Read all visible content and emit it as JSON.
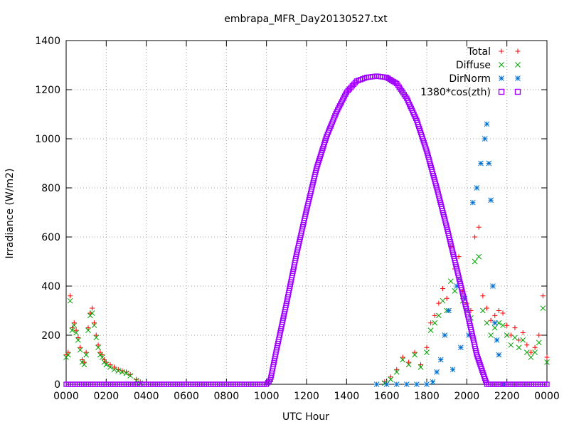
{
  "chart_data": {
    "type": "scatter",
    "title": "embrapa_MFR_Day20130527.txt",
    "xlabel": "UTC Hour",
    "ylabel": "Irradiance (W/m2)",
    "xlim": [
      0,
      24
    ],
    "ylim": [
      0,
      1400
    ],
    "x_ticks": [
      {
        "value": 0,
        "label": "0000"
      },
      {
        "value": 2,
        "label": "0200"
      },
      {
        "value": 4,
        "label": "0400"
      },
      {
        "value": 6,
        "label": "0600"
      },
      {
        "value": 8,
        "label": "0800"
      },
      {
        "value": 10,
        "label": "1000"
      },
      {
        "value": 12,
        "label": "1200"
      },
      {
        "value": 14,
        "label": "1400"
      },
      {
        "value": 16,
        "label": "1600"
      },
      {
        "value": 18,
        "label": "1800"
      },
      {
        "value": 20,
        "label": "2000"
      },
      {
        "value": 22,
        "label": "2200"
      },
      {
        "value": 24,
        "label": "0000"
      }
    ],
    "y_ticks": [
      0,
      200,
      400,
      600,
      800,
      1000,
      1200,
      1400
    ],
    "grid": true,
    "legend_position": "top-right",
    "series": [
      {
        "name": "Total",
        "marker": "+",
        "color": "#ff0000",
        "x": [
          0.0,
          0.1,
          0.2,
          0.3,
          0.4,
          0.5,
          0.6,
          0.7,
          0.8,
          0.9,
          1.0,
          1.1,
          1.2,
          1.3,
          1.4,
          1.5,
          1.6,
          1.7,
          1.8,
          1.9,
          2.0,
          2.2,
          2.4,
          2.6,
          2.8,
          3.0,
          3.2,
          3.5,
          3.7,
          15.9,
          16.2,
          16.5,
          16.8,
          17.1,
          17.4,
          17.7,
          18.0,
          18.2,
          18.4,
          18.6,
          18.8,
          19.0,
          19.2,
          19.4,
          19.6,
          19.8,
          20.0,
          20.2,
          20.4,
          20.6,
          20.8,
          21.0,
          21.2,
          21.4,
          21.6,
          21.8,
          22.0,
          22.2,
          22.4,
          22.6,
          22.8,
          23.0,
          23.2,
          23.4,
          23.6,
          23.8,
          24.0
        ],
        "y": [
          120,
          130,
          360,
          230,
          250,
          220,
          190,
          150,
          100,
          90,
          130,
          230,
          290,
          310,
          250,
          200,
          160,
          130,
          120,
          100,
          90,
          80,
          70,
          60,
          55,
          50,
          40,
          20,
          10,
          10,
          30,
          60,
          110,
          90,
          130,
          80,
          150,
          250,
          280,
          330,
          390,
          350,
          560,
          470,
          520,
          380,
          330,
          300,
          600,
          640,
          360,
          310,
          260,
          280,
          300,
          290,
          240,
          200,
          230,
          180,
          210,
          160,
          130,
          150,
          200,
          360,
          110
        ]
      },
      {
        "name": "Diffuse",
        "marker": "x",
        "color": "#00a000",
        "x": [
          0.0,
          0.1,
          0.2,
          0.3,
          0.4,
          0.5,
          0.6,
          0.7,
          0.8,
          0.9,
          1.0,
          1.1,
          1.2,
          1.3,
          1.4,
          1.5,
          1.6,
          1.7,
          1.8,
          1.9,
          2.0,
          2.2,
          2.4,
          2.6,
          2.8,
          3.0,
          3.2,
          3.5,
          3.7,
          15.9,
          16.2,
          16.5,
          16.8,
          17.1,
          17.4,
          17.7,
          18.0,
          18.2,
          18.4,
          18.6,
          18.8,
          19.0,
          19.2,
          19.4,
          19.6,
          19.8,
          20.0,
          20.2,
          20.4,
          20.6,
          20.8,
          21.0,
          21.2,
          21.4,
          21.6,
          21.8,
          22.0,
          22.2,
          22.4,
          22.6,
          22.8,
          23.0,
          23.2,
          23.4,
          23.6,
          23.8,
          24.0
        ],
        "y": [
          110,
          120,
          340,
          220,
          240,
          210,
          180,
          140,
          90,
          80,
          120,
          220,
          280,
          290,
          240,
          190,
          150,
          120,
          110,
          90,
          80,
          70,
          60,
          55,
          50,
          45,
          35,
          15,
          5,
          5,
          20,
          50,
          100,
          80,
          120,
          70,
          130,
          220,
          250,
          280,
          340,
          300,
          420,
          380,
          430,
          340,
          300,
          270,
          500,
          520,
          300,
          250,
          200,
          230,
          250,
          240,
          200,
          160,
          190,
          150,
          180,
          130,
          110,
          130,
          170,
          310,
          90
        ]
      },
      {
        "name": "DirNorm",
        "marker": "*",
        "color": "#0070d0",
        "x": [
          15.5,
          16.0,
          16.5,
          17.0,
          17.5,
          18.0,
          18.3,
          18.5,
          18.7,
          18.9,
          19.1,
          19.3,
          19.5,
          19.7,
          19.9,
          20.1,
          20.3,
          20.5,
          20.7,
          20.9,
          21.0,
          21.1,
          21.2,
          21.3,
          21.4,
          21.5,
          21.6,
          21.8
        ],
        "y": [
          0,
          0,
          0,
          0,
          0,
          0,
          10,
          50,
          100,
          200,
          300,
          60,
          400,
          150,
          350,
          200,
          740,
          800,
          900,
          1000,
          1060,
          900,
          750,
          400,
          250,
          180,
          120,
          0
        ]
      },
      {
        "name": "1380*cos(zth)",
        "marker": "square",
        "color": "#a000ff",
        "x": [
          0,
          1,
          2,
          3,
          4,
          5,
          6,
          7,
          8,
          9,
          10.0,
          10.2,
          10.5,
          11.0,
          11.5,
          12.0,
          12.5,
          13.0,
          13.5,
          14.0,
          14.5,
          15.0,
          15.5,
          16.0,
          16.5,
          17.0,
          17.5,
          18.0,
          18.5,
          19.0,
          19.5,
          20.0,
          20.5,
          21.0,
          21.5,
          21.9,
          22.0,
          22.5,
          23,
          24
        ],
        "y": [
          0,
          0,
          0,
          0,
          0,
          0,
          0,
          0,
          0,
          0,
          0,
          20,
          140,
          330,
          530,
          710,
          880,
          1010,
          1110,
          1190,
          1235,
          1250,
          1255,
          1250,
          1225,
          1165,
          1075,
          950,
          800,
          640,
          470,
          300,
          120,
          0,
          0,
          0,
          0,
          0,
          0,
          0
        ]
      }
    ]
  }
}
